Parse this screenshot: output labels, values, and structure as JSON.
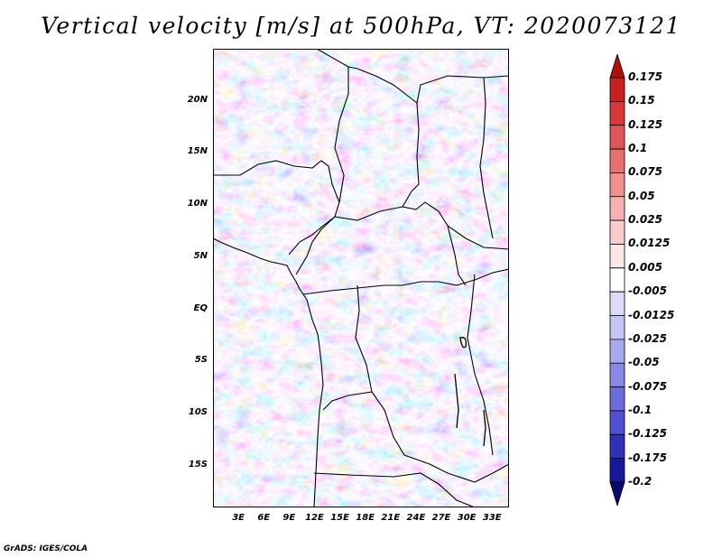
{
  "title": "Vertical velocity [m/s] at 500hPa, VT: 2020073121",
  "credit": "GrADS: IGES/COLA",
  "map": {
    "lon_range": [
      0,
      35
    ],
    "lat_range": [
      -19,
      25
    ],
    "lat_labels": [
      {
        "lat": 20,
        "text": "20N"
      },
      {
        "lat": 15,
        "text": "15N"
      },
      {
        "lat": 10,
        "text": "10N"
      },
      {
        "lat": 5,
        "text": "5N"
      },
      {
        "lat": 0,
        "text": "EQ"
      },
      {
        "lat": -5,
        "text": "5S"
      },
      {
        "lat": -10,
        "text": "10S"
      },
      {
        "lat": -15,
        "text": "15S"
      }
    ],
    "lon_labels": [
      {
        "lon": 3,
        "text": "3E"
      },
      {
        "lon": 6,
        "text": "6E"
      },
      {
        "lon": 9,
        "text": "9E"
      },
      {
        "lon": 12,
        "text": "12E"
      },
      {
        "lon": 15,
        "text": "15E"
      },
      {
        "lon": 18,
        "text": "18E"
      },
      {
        "lon": 21,
        "text": "21E"
      },
      {
        "lon": 24,
        "text": "24E"
      },
      {
        "lon": 27,
        "text": "27E"
      },
      {
        "lon": 30,
        "text": "30E"
      },
      {
        "lon": 33,
        "text": "33E"
      }
    ]
  },
  "colorbar": {
    "levels": [
      "0.175",
      "0.15",
      "0.125",
      "0.1",
      "0.075",
      "0.05",
      "0.025",
      "0.0125",
      "0.005",
      "-0.005",
      "-0.0125",
      "-0.025",
      "-0.05",
      "-0.075",
      "-0.1",
      "-0.125",
      "-0.175",
      "-0.2"
    ],
    "colors": [
      "#b01010",
      "#c82020",
      "#d83838",
      "#e05555",
      "#e87070",
      "#f09090",
      "#f5b0b0",
      "#f9cccc",
      "#fce6e6",
      "#ffffff",
      "#dcdcfa",
      "#c4c4f5",
      "#a8a8ee",
      "#8a8ae6",
      "#6c6cdc",
      "#5050d0",
      "#3030b8",
      "#181898",
      "#080870"
    ]
  }
}
